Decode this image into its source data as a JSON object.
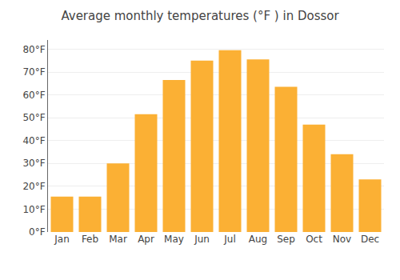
{
  "chart_data": {
    "type": "bar",
    "title": "Average monthly temperatures (°F ) in Dossor",
    "categories": [
      "Jan",
      "Feb",
      "Mar",
      "Apr",
      "May",
      "Jun",
      "Jul",
      "Aug",
      "Sep",
      "Oct",
      "Nov",
      "Dec"
    ],
    "values": [
      15.5,
      15.5,
      30.0,
      51.5,
      66.5,
      75.0,
      79.5,
      75.5,
      63.5,
      47.0,
      34.0,
      23.0
    ],
    "color": "#FBB034",
    "ylim": [
      0,
      84
    ],
    "yticks": [
      {
        "value": 0,
        "label": "0°F"
      },
      {
        "value": 10,
        "label": "10°F"
      },
      {
        "value": 20,
        "label": "20°F"
      },
      {
        "value": 30,
        "label": "30°F"
      },
      {
        "value": 40,
        "label": "40°F"
      },
      {
        "value": 50,
        "label": "50°F"
      },
      {
        "value": 60,
        "label": "60°F"
      },
      {
        "value": 70,
        "label": "70°F"
      },
      {
        "value": 80,
        "label": "80°F"
      }
    ],
    "grid": true
  }
}
